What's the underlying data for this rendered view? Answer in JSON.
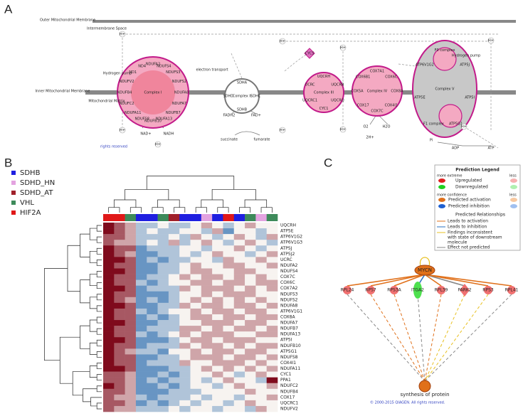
{
  "panel_labels": [
    "A",
    "B",
    "C"
  ],
  "panel_a": {
    "labels": [
      "Outer Mitochondrial Membrane",
      "Intermembrane Space",
      "Inner Mitochondrial Membrane",
      "Mitochondrial Matrix",
      "Hydrogen pump",
      "electron transport",
      "Hydrogen pump",
      "NADH",
      "NAD+",
      "FADH2",
      "FAD+",
      "succinate",
      "fumarate",
      "O2",
      "H2O",
      "2H+",
      "Pi",
      "ADP",
      "ATP",
      "rights reserved",
      "CYCS"
    ],
    "protons": [
      "H+",
      "H+",
      "H+",
      "H+",
      "H+",
      "H+",
      "H+",
      "H+",
      "H+"
    ],
    "complexes": [
      {
        "label": "Complex I",
        "subunits": [
          "NDUFA2",
          "NDUFS4",
          "NDUFS3",
          "NDUFS2",
          "NDUFA8",
          "NDUFA7",
          "NDUFB7",
          "NDUFA13",
          "NDUFB10",
          "NDUFS8",
          "NDUFA11",
          "NDUFC2",
          "NDUFB4",
          "NDUFV2",
          "ND1",
          "ND4"
        ]
      },
      {
        "label": "Complex II",
        "subunits": [
          "SDHA",
          "SDHC",
          "SDHB",
          "SDHD"
        ]
      },
      {
        "label": "Complex III",
        "subunits": [
          "UQCRH",
          "UQCRB",
          "UQCRQ",
          "CYC1",
          "UQCRC1",
          "UCRC"
        ]
      },
      {
        "label": "Complex IV",
        "subunits": [
          "COX7A1",
          "COX6C",
          "COX8A",
          "COX4I1",
          "COX7C",
          "COX17",
          "COX5A",
          "COX6B1"
        ]
      },
      {
        "label": "Complex V",
        "subunits": [
          "F0 complex",
          "ATP5J",
          "ATP5I",
          "ATP5G1",
          "F1 complex",
          "ATP5E",
          "ATP6V1G2"
        ]
      }
    ]
  },
  "panel_b": {
    "groups": [
      {
        "name": "SDHB",
        "color": "#1f1fe0"
      },
      {
        "name": "SDHD_HN",
        "color": "#e3a3e0"
      },
      {
        "name": "SDHD_AT",
        "color": "#a0202a"
      },
      {
        "name": "VHL",
        "color": "#3d8a5a"
      },
      {
        "name": "HIF2A",
        "color": "#e01818"
      }
    ],
    "column_groups": [
      4,
      4,
      3,
      0,
      0,
      3,
      2,
      0,
      0,
      1,
      0,
      4,
      0,
      3,
      1,
      3
    ],
    "rows": [
      "UQCRH",
      "ATP5E",
      "ATP6V1G2",
      "ATP6V1G3",
      "ATP5J",
      "ATP5J2",
      "UCRC",
      "NDUFA2",
      "NDUFS4",
      "COX7C",
      "COX6C",
      "COX7A2",
      "NDUFS3",
      "NDUFS2",
      "NDUFA8",
      "ATP6V1G1",
      "COX8A",
      "NDUFA7",
      "NDUFB7",
      "NDUFA13",
      "ATP5I",
      "NDUFB10",
      "ATP5G1",
      "NDUFS8",
      "COX4I1",
      "NDUFA11",
      "CYC1",
      "PPA1",
      "NDUFC2",
      "NDUFB4",
      "COX17",
      "UQCRC1",
      "NDUFV2"
    ],
    "vlim": [
      -3,
      3
    ],
    "colors": {
      "low": "#2166ac",
      "mid": "#f7f3f0",
      "high": "#7f0a1c"
    },
    "values": [
      [
        3,
        2,
        1,
        -1,
        -1,
        0,
        -1,
        -1,
        0,
        1,
        0,
        -1,
        0,
        1,
        0,
        0
      ],
      [
        3,
        2,
        1,
        -1,
        0,
        -1,
        -1,
        0,
        0,
        -1,
        1,
        -2,
        0,
        0,
        -1,
        0
      ],
      [
        2,
        2,
        1,
        -1,
        -1,
        -1,
        0,
        -1,
        1,
        0,
        -1,
        0,
        1,
        0,
        -1,
        1
      ],
      [
        2,
        1,
        1,
        -1,
        0,
        -1,
        1,
        -1,
        0,
        1,
        0,
        -1,
        0,
        1,
        0,
        -1
      ],
      [
        3,
        2,
        2,
        -2,
        -1,
        -1,
        -1,
        0,
        0,
        -1,
        0,
        0,
        1,
        0,
        -1,
        0
      ],
      [
        3,
        2,
        1,
        -2,
        -2,
        -1,
        -1,
        0,
        -1,
        0,
        1,
        0,
        0,
        -1,
        0,
        1
      ],
      [
        3,
        3,
        2,
        -2,
        -1,
        -2,
        -1,
        -1,
        0,
        0,
        -1,
        1,
        0,
        0,
        1,
        0
      ],
      [
        3,
        2,
        2,
        -2,
        -2,
        -1,
        -1,
        0,
        1,
        0,
        0,
        1,
        1,
        0,
        0,
        1
      ],
      [
        3,
        3,
        2,
        -2,
        -2,
        -1,
        -1,
        0,
        1,
        1,
        0,
        0,
        1,
        1,
        0,
        0
      ],
      [
        3,
        2,
        2,
        -2,
        -1,
        -1,
        0,
        1,
        0,
        1,
        1,
        0,
        1,
        0,
        1,
        0
      ],
      [
        3,
        2,
        2,
        -1,
        -2,
        -1,
        0,
        0,
        1,
        1,
        0,
        1,
        1,
        0,
        1,
        1
      ],
      [
        3,
        3,
        2,
        -2,
        -1,
        -1,
        -1,
        1,
        0,
        1,
        1,
        1,
        0,
        1,
        0,
        1
      ],
      [
        3,
        2,
        2,
        -2,
        -2,
        -2,
        -1,
        0,
        0,
        1,
        0,
        1,
        1,
        1,
        0,
        0
      ],
      [
        3,
        2,
        1,
        -2,
        -1,
        -2,
        -1,
        0,
        1,
        0,
        1,
        0,
        1,
        0,
        1,
        0
      ],
      [
        3,
        3,
        2,
        -2,
        -2,
        -1,
        -1,
        1,
        0,
        1,
        1,
        0,
        1,
        1,
        0,
        1
      ],
      [
        3,
        2,
        2,
        -1,
        -2,
        -1,
        0,
        0,
        1,
        0,
        1,
        1,
        0,
        1,
        1,
        0
      ],
      [
        3,
        2,
        2,
        -2,
        -1,
        -2,
        -1,
        0,
        1,
        1,
        0,
        1,
        1,
        0,
        1,
        1
      ],
      [
        3,
        3,
        2,
        -2,
        -2,
        -1,
        -1,
        0,
        0,
        1,
        1,
        1,
        0,
        1,
        1,
        0
      ],
      [
        3,
        2,
        2,
        -2,
        -1,
        -1,
        -1,
        1,
        1,
        0,
        1,
        0,
        1,
        1,
        0,
        1
      ],
      [
        3,
        2,
        2,
        -1,
        -2,
        -1,
        0,
        1,
        0,
        1,
        1,
        1,
        0,
        0,
        1,
        1
      ],
      [
        3,
        3,
        2,
        -2,
        -2,
        -2,
        -1,
        0,
        1,
        1,
        0,
        1,
        1,
        1,
        0,
        0
      ],
      [
        3,
        2,
        2,
        -2,
        -1,
        -1,
        -1,
        1,
        0,
        1,
        1,
        0,
        1,
        0,
        1,
        1
      ],
      [
        3,
        2,
        1,
        -1,
        -1,
        -2,
        0,
        0,
        1,
        0,
        1,
        1,
        0,
        1,
        1,
        0
      ],
      [
        3,
        2,
        2,
        -2,
        -2,
        -1,
        -1,
        0,
        1,
        1,
        1,
        0,
        1,
        1,
        0,
        1
      ],
      [
        3,
        2,
        2,
        -2,
        -1,
        -1,
        -1,
        1,
        0,
        0,
        1,
        1,
        1,
        0,
        1,
        0
      ],
      [
        3,
        3,
        2,
        -2,
        -2,
        -2,
        -1,
        -1,
        0,
        1,
        0,
        1,
        0,
        1,
        0,
        1
      ],
      [
        2,
        2,
        1,
        -2,
        -2,
        -1,
        -2,
        -1,
        0,
        0,
        1,
        0,
        -1,
        0,
        1,
        0
      ],
      [
        2,
        2,
        1,
        -2,
        -1,
        -2,
        -1,
        -1,
        0,
        -1,
        0,
        1,
        0,
        0,
        -1,
        3
      ],
      [
        3,
        2,
        1,
        -2,
        -2,
        -1,
        -2,
        -1,
        0,
        0,
        -1,
        0,
        1,
        0,
        0,
        1
      ],
      [
        2,
        2,
        1,
        -2,
        -2,
        -2,
        -1,
        -1,
        -1,
        0,
        0,
        0,
        0,
        1,
        0,
        0
      ],
      [
        2,
        1,
        1,
        -1,
        -2,
        -1,
        -1,
        -1,
        0,
        -1,
        0,
        0,
        -1,
        0,
        0,
        1
      ],
      [
        2,
        2,
        1,
        -2,
        -1,
        -2,
        -1,
        0,
        -1,
        0,
        0,
        -1,
        0,
        1,
        0,
        0
      ],
      [
        2,
        1,
        1,
        -1,
        -1,
        -1,
        0,
        -1,
        0,
        0,
        -1,
        0,
        0,
        -1,
        1,
        0
      ]
    ]
  },
  "panel_c": {
    "legend": {
      "title": "Prediction Legend",
      "more_extreme": "more extreme",
      "less_1": "less",
      "upregulated": "Upregulated",
      "downregulated": "Downregulated",
      "more_confidence": "more confidence",
      "less_2": "less",
      "predicted_activation": "Predicted activation",
      "predicted_inhibition": "Predicted inhibition",
      "relationships_title": "Predicted Relationships",
      "leads_to_activation": "Leads to activation",
      "leads_to_inhibition": "Leads to inhibition",
      "inconsistent": [
        "Findings inconsistent",
        "with state of downstream",
        "molecule"
      ],
      "not_predicted": "Effect not predicted"
    },
    "regulator": {
      "label": "MYCN",
      "color": "#e0701a"
    },
    "targets": [
      {
        "label": "RPL24",
        "shape": "circle",
        "color": "#f07070",
        "edge_in": "#e0701a",
        "edge_out": "#888888"
      },
      {
        "label": "RPS7",
        "shape": "circle",
        "color": "#f07070",
        "edge_in": "#e0701a",
        "edge_out": "#e0701a"
      },
      {
        "label": "RPS3A",
        "shape": "circle",
        "color": "#f07070",
        "edge_in": "#e0701a",
        "edge_out": "#e0701a"
      },
      {
        "label": "ITGA2",
        "shape": "ellipse",
        "color": "#4ee04e",
        "edge_in": "#2a70c0",
        "edge_out": "#888888"
      },
      {
        "label": "RPL39",
        "shape": "circle",
        "color": "#f07070",
        "edge_in": "#e0701a",
        "edge_out": "#e0701a"
      },
      {
        "label": "PARK2",
        "shape": "diamond",
        "color": "#f07070",
        "edge_in": "#888888",
        "edge_out": "#e8c020"
      },
      {
        "label": "RPS3",
        "shape": "circle",
        "color": "#f07070",
        "edge_in": "#e0701a",
        "edge_out": "#e8c020"
      },
      {
        "label": "RPL41",
        "shape": "circle",
        "color": "#f07070",
        "edge_in": "#e0701a",
        "edge_out": "#888888"
      }
    ],
    "function": {
      "label": "synthesis of protein",
      "color": "#e0701a"
    },
    "copyright": "© 2000-2015 QIAGEN. All rights reserved."
  }
}
